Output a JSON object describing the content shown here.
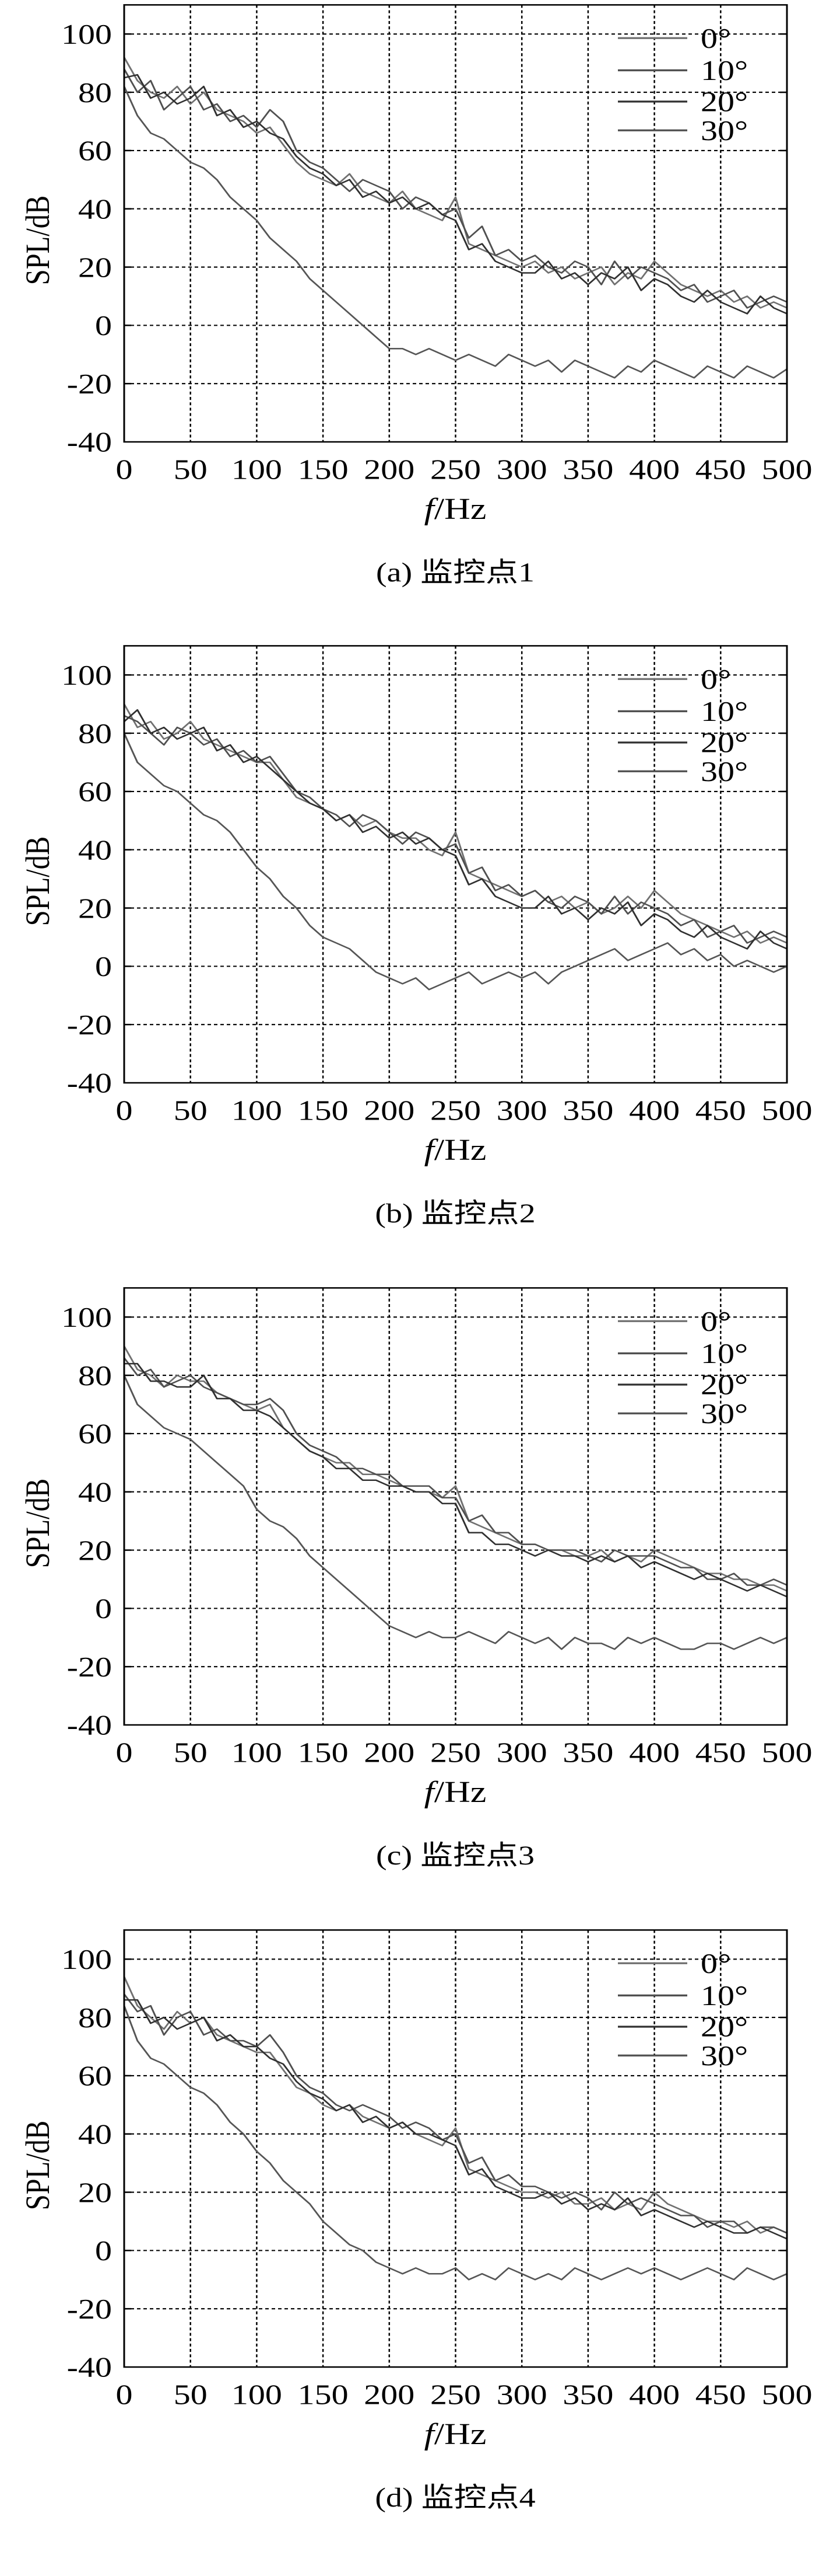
{
  "chart_data": [
    {
      "type": "line",
      "caption": "(a) 监控点1",
      "xlabel_italic": "f",
      "xlabel_rest": "/Hz",
      "ylabel": "SPL/dB",
      "xlim": [
        0,
        500
      ],
      "ylim": [
        -40,
        110
      ],
      "xticks": [
        "0",
        "50",
        "100",
        "150",
        "200",
        "250",
        "300",
        "350",
        "400",
        "450",
        "500"
      ],
      "yticks": [
        "-40",
        "-20",
        "0",
        "20",
        "40",
        "60",
        "80",
        "100"
      ],
      "grid": true,
      "legend_position": "top-right",
      "x_step_hz": 10,
      "series": [
        {
          "name": "0°",
          "color": "#707070",
          "values": [
            92,
            84,
            80,
            78,
            82,
            76,
            80,
            74,
            72,
            70,
            66,
            68,
            62,
            56,
            52,
            50,
            48,
            52,
            46,
            44,
            42,
            46,
            40,
            38,
            36,
            44,
            28,
            26,
            24,
            22,
            20,
            22,
            18,
            20,
            16,
            18,
            20,
            14,
            18,
            16,
            22,
            18,
            14,
            12,
            10,
            12,
            8,
            10,
            6,
            8,
            6
          ]
        },
        {
          "name": "10°",
          "color": "#505050",
          "values": [
            88,
            80,
            84,
            74,
            78,
            82,
            74,
            76,
            70,
            72,
            68,
            74,
            70,
            60,
            56,
            54,
            50,
            46,
            50,
            48,
            46,
            40,
            44,
            42,
            38,
            40,
            30,
            34,
            24,
            26,
            22,
            24,
            20,
            18,
            22,
            20,
            14,
            22,
            16,
            20,
            18,
            16,
            12,
            14,
            8,
            10,
            12,
            6,
            8,
            10,
            8
          ]
        },
        {
          "name": "20°",
          "color": "#303030",
          "values": [
            85,
            86,
            78,
            80,
            76,
            78,
            82,
            72,
            74,
            68,
            70,
            66,
            64,
            58,
            54,
            52,
            48,
            50,
            44,
            46,
            42,
            44,
            40,
            42,
            38,
            36,
            26,
            28,
            22,
            20,
            18,
            18,
            22,
            16,
            18,
            14,
            18,
            16,
            20,
            12,
            16,
            14,
            10,
            8,
            12,
            8,
            6,
            4,
            10,
            6,
            4
          ]
        },
        {
          "name": "30°",
          "color": "#555555",
          "values": [
            82,
            72,
            66,
            64,
            60,
            56,
            54,
            50,
            44,
            40,
            36,
            30,
            26,
            22,
            16,
            12,
            8,
            4,
            0,
            -4,
            -8,
            -8,
            -10,
            -8,
            -10,
            -12,
            -10,
            -12,
            -14,
            -10,
            -12,
            -14,
            -12,
            -16,
            -12,
            -14,
            -16,
            -18,
            -14,
            -16,
            -12,
            -14,
            -16,
            -18,
            -14,
            -16,
            -18,
            -14,
            -16,
            -18,
            -15
          ]
        }
      ]
    },
    {
      "type": "line",
      "caption": "(b) 监控点2",
      "xlabel_italic": "f",
      "xlabel_rest": "/Hz",
      "ylabel": "SPL/dB",
      "xlim": [
        0,
        500
      ],
      "ylim": [
        -40,
        110
      ],
      "xticks": [
        "0",
        "50",
        "100",
        "150",
        "200",
        "250",
        "300",
        "350",
        "400",
        "450",
        "500"
      ],
      "yticks": [
        "-40",
        "-20",
        "0",
        "20",
        "40",
        "60",
        "80",
        "100"
      ],
      "grid": true,
      "legend_position": "top-right",
      "x_step_hz": 10,
      "series": [
        {
          "name": "0°",
          "color": "#707070",
          "values": [
            90,
            82,
            84,
            78,
            80,
            84,
            78,
            76,
            74,
            72,
            70,
            70,
            64,
            58,
            56,
            54,
            50,
            52,
            48,
            50,
            46,
            44,
            44,
            40,
            38,
            46,
            32,
            30,
            28,
            26,
            24,
            26,
            22,
            24,
            20,
            22,
            18,
            20,
            24,
            20,
            26,
            22,
            18,
            16,
            14,
            12,
            10,
            12,
            8,
            10,
            8
          ]
        },
        {
          "name": "10°",
          "color": "#505050",
          "values": [
            86,
            84,
            80,
            76,
            82,
            80,
            76,
            78,
            72,
            74,
            70,
            72,
            66,
            60,
            58,
            54,
            52,
            48,
            52,
            50,
            46,
            42,
            46,
            44,
            40,
            42,
            32,
            34,
            26,
            28,
            24,
            26,
            22,
            20,
            24,
            22,
            18,
            24,
            18,
            22,
            20,
            18,
            14,
            16,
            10,
            12,
            14,
            8,
            10,
            12,
            10
          ]
        },
        {
          "name": "20°",
          "color": "#303030",
          "values": [
            84,
            88,
            80,
            82,
            78,
            80,
            82,
            74,
            76,
            70,
            72,
            68,
            64,
            60,
            56,
            54,
            50,
            52,
            46,
            48,
            44,
            46,
            42,
            44,
            40,
            38,
            28,
            30,
            24,
            22,
            20,
            20,
            24,
            18,
            20,
            16,
            20,
            18,
            22,
            14,
            18,
            16,
            12,
            10,
            14,
            10,
            8,
            6,
            12,
            8,
            6
          ]
        },
        {
          "name": "30°",
          "color": "#555555",
          "values": [
            80,
            70,
            66,
            62,
            60,
            56,
            52,
            50,
            46,
            40,
            34,
            30,
            24,
            20,
            14,
            10,
            8,
            6,
            2,
            -2,
            -4,
            -6,
            -4,
            -8,
            -6,
            -4,
            -2,
            -6,
            -4,
            -2,
            -4,
            -2,
            -6,
            -2,
            0,
            2,
            4,
            6,
            2,
            4,
            6,
            8,
            4,
            6,
            2,
            4,
            0,
            2,
            0,
            -2,
            0
          ]
        }
      ]
    },
    {
      "type": "line",
      "caption": "(c) 监控点3",
      "xlabel_italic": "f",
      "xlabel_rest": "/Hz",
      "ylabel": "SPL/dB",
      "xlim": [
        0,
        500
      ],
      "ylim": [
        -40,
        110
      ],
      "xticks": [
        "0",
        "50",
        "100",
        "150",
        "200",
        "250",
        "300",
        "350",
        "400",
        "450",
        "500"
      ],
      "yticks": [
        "-40",
        "-20",
        "0",
        "20",
        "40",
        "60",
        "80",
        "100"
      ],
      "grid": true,
      "legend_position": "top-right",
      "x_step_hz": 10,
      "series": [
        {
          "name": "0°",
          "color": "#707070",
          "values": [
            90,
            82,
            80,
            76,
            80,
            78,
            78,
            74,
            72,
            70,
            68,
            70,
            62,
            58,
            54,
            52,
            50,
            50,
            46,
            46,
            44,
            42,
            40,
            40,
            38,
            42,
            30,
            28,
            26,
            24,
            22,
            22,
            20,
            20,
            18,
            18,
            20,
            16,
            18,
            16,
            20,
            18,
            16,
            14,
            12,
            12,
            10,
            10,
            8,
            8,
            6
          ]
        },
        {
          "name": "10°",
          "color": "#505050",
          "values": [
            86,
            80,
            82,
            76,
            78,
            80,
            76,
            74,
            72,
            70,
            70,
            72,
            68,
            60,
            56,
            54,
            52,
            48,
            48,
            46,
            46,
            42,
            42,
            42,
            38,
            38,
            30,
            32,
            26,
            26,
            22,
            22,
            20,
            20,
            20,
            18,
            16,
            20,
            18,
            18,
            18,
            16,
            14,
            14,
            10,
            10,
            12,
            8,
            8,
            10,
            8
          ]
        },
        {
          "name": "20°",
          "color": "#303030",
          "values": [
            84,
            84,
            78,
            78,
            76,
            76,
            80,
            72,
            72,
            68,
            68,
            66,
            62,
            58,
            54,
            52,
            48,
            48,
            44,
            44,
            42,
            42,
            40,
            40,
            36,
            36,
            26,
            26,
            22,
            22,
            20,
            18,
            20,
            18,
            18,
            16,
            18,
            16,
            18,
            14,
            16,
            14,
            12,
            10,
            12,
            10,
            8,
            6,
            8,
            6,
            4
          ]
        },
        {
          "name": "30°",
          "color": "#555555",
          "values": [
            80,
            70,
            66,
            62,
            60,
            58,
            54,
            50,
            46,
            42,
            34,
            30,
            28,
            24,
            18,
            14,
            10,
            6,
            2,
            -2,
            -6,
            -8,
            -10,
            -8,
            -10,
            -10,
            -8,
            -10,
            -12,
            -8,
            -10,
            -12,
            -10,
            -14,
            -10,
            -12,
            -12,
            -14,
            -10,
            -12,
            -10,
            -12,
            -14,
            -14,
            -12,
            -12,
            -14,
            -12,
            -10,
            -12,
            -10
          ]
        }
      ]
    },
    {
      "type": "line",
      "caption": "(d) 监控点4",
      "xlabel_italic": "f",
      "xlabel_rest": "/Hz",
      "ylabel": "SPL/dB",
      "xlim": [
        0,
        500
      ],
      "ylim": [
        -40,
        110
      ],
      "xticks": [
        "0",
        "50",
        "100",
        "150",
        "200",
        "250",
        "300",
        "350",
        "400",
        "450",
        "500"
      ],
      "yticks": [
        "-40",
        "-20",
        "0",
        "20",
        "40",
        "60",
        "80",
        "100"
      ],
      "grid": true,
      "legend_position": "top-right",
      "x_step_hz": 10,
      "series": [
        {
          "name": "0°",
          "color": "#707070",
          "values": [
            94,
            84,
            80,
            76,
            82,
            78,
            80,
            74,
            72,
            70,
            68,
            68,
            62,
            56,
            54,
            50,
            48,
            50,
            46,
            44,
            42,
            44,
            40,
            38,
            36,
            42,
            28,
            26,
            24,
            22,
            20,
            20,
            18,
            20,
            16,
            16,
            18,
            14,
            16,
            14,
            20,
            16,
            14,
            12,
            10,
            10,
            8,
            10,
            6,
            8,
            6
          ]
        },
        {
          "name": "10°",
          "color": "#505050",
          "values": [
            88,
            82,
            84,
            74,
            80,
            82,
            74,
            76,
            72,
            72,
            70,
            74,
            68,
            60,
            56,
            54,
            50,
            48,
            50,
            48,
            46,
            42,
            44,
            42,
            38,
            40,
            30,
            32,
            24,
            26,
            22,
            22,
            20,
            18,
            20,
            18,
            14,
            20,
            16,
            18,
            16,
            14,
            12,
            12,
            8,
            10,
            10,
            6,
            8,
            8,
            6
          ]
        },
        {
          "name": "20°",
          "color": "#303030",
          "values": [
            86,
            86,
            78,
            80,
            76,
            78,
            80,
            72,
            74,
            70,
            70,
            66,
            64,
            58,
            54,
            52,
            48,
            50,
            44,
            46,
            42,
            44,
            40,
            40,
            38,
            36,
            26,
            28,
            22,
            20,
            18,
            18,
            20,
            16,
            18,
            14,
            16,
            14,
            18,
            12,
            14,
            12,
            10,
            8,
            10,
            8,
            6,
            6,
            8,
            6,
            4
          ]
        },
        {
          "name": "30°",
          "color": "#555555",
          "values": [
            84,
            72,
            66,
            64,
            60,
            56,
            54,
            50,
            44,
            40,
            34,
            30,
            24,
            20,
            16,
            10,
            6,
            2,
            0,
            -4,
            -6,
            -8,
            -6,
            -8,
            -8,
            -6,
            -10,
            -8,
            -10,
            -6,
            -8,
            -10,
            -8,
            -10,
            -6,
            -8,
            -10,
            -8,
            -6,
            -8,
            -6,
            -8,
            -10,
            -8,
            -6,
            -8,
            -10,
            -6,
            -8,
            -10,
            -8
          ]
        }
      ]
    }
  ]
}
